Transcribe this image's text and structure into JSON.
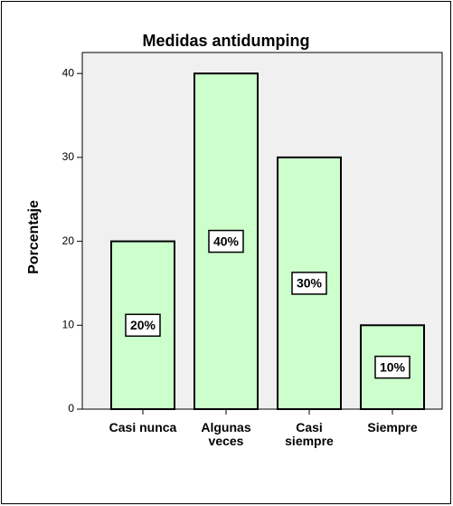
{
  "chart_data": {
    "type": "bar",
    "title": "Medidas antidumping",
    "y_label": "Porcentaje",
    "categories": [
      "Casi nunca",
      "Algunas veces",
      "Casi siempre",
      "Siempre"
    ],
    "values": [
      20,
      40,
      30,
      10
    ],
    "value_labels": [
      "20%",
      "40%",
      "30%",
      "10%"
    ],
    "color": "#ccffcc",
    "ylim": [
      0,
      42.5
    ],
    "yticks": [
      0,
      10,
      20,
      30,
      40
    ],
    "grid": false
  }
}
